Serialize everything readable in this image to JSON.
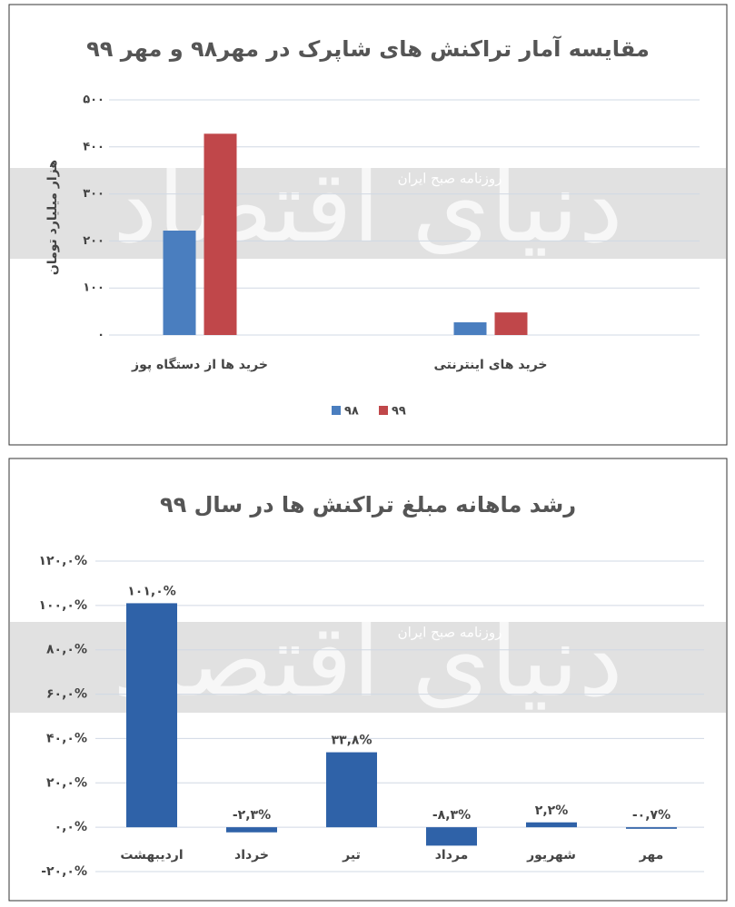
{
  "chart_data": [
    {
      "type": "bar",
      "title": "مقایسه آمار تراکنش های شاپرک در مهر۹۸ و مهر ۹۹",
      "ylabel": "هزار میلیارد تومان",
      "categories": [
        "خرید ها از  دستگاه پوز",
        "خرید های اینترنتی"
      ],
      "series": [
        {
          "name": "۹۸",
          "color": "#4a7ebf",
          "values": [
            222,
            27
          ]
        },
        {
          "name": "۹۹",
          "color": "#c0474a",
          "values": [
            428,
            48
          ]
        }
      ],
      "ylim": [
        0,
        500
      ],
      "yticks": [
        {
          "value": 0,
          "label": "۰"
        },
        {
          "value": 100,
          "label": "۱۰۰"
        },
        {
          "value": 200,
          "label": "۲۰۰"
        },
        {
          "value": 300,
          "label": "۳۰۰"
        },
        {
          "value": 400,
          "label": "۴۰۰"
        },
        {
          "value": 500,
          "label": "۵۰۰"
        }
      ],
      "grid": true,
      "legend": "bottom",
      "watermark": "دنیای اقتصاد",
      "watermark_note": "روزنامه صبح ایران"
    },
    {
      "type": "bar",
      "title": "رشد ماهانه مبلغ تراکنش ها در سال ۹۹",
      "categories": [
        "اردیبهشت",
        "خرداد",
        "تیر",
        "مرداد",
        "شهریور",
        "مهر"
      ],
      "values": [
        101.0,
        -2.3,
        33.8,
        -8.3,
        2.2,
        -0.7
      ],
      "value_labels": [
        "۱۰۱,۰%",
        "-۲,۳%",
        "۳۳,۸%",
        "-۸,۳%",
        "۲,۲%",
        "-۰,۷%"
      ],
      "color": "#2f62a8",
      "ylim": [
        -20,
        120
      ],
      "yticks": [
        {
          "value": -20,
          "label": "-۲۰,۰%"
        },
        {
          "value": 0,
          "label": "۰,۰%"
        },
        {
          "value": 20,
          "label": "۲۰,۰%"
        },
        {
          "value": 40,
          "label": "۴۰,۰%"
        },
        {
          "value": 60,
          "label": "۶۰,۰%"
        },
        {
          "value": 80,
          "label": "۸۰,۰%"
        },
        {
          "value": 100,
          "label": "۱۰۰,۰%"
        },
        {
          "value": 120,
          "label": "۱۲۰,۰%"
        }
      ],
      "grid": true,
      "watermark": "دنیای اقتصاد",
      "watermark_note": "روزنامه صبح ایران"
    }
  ]
}
